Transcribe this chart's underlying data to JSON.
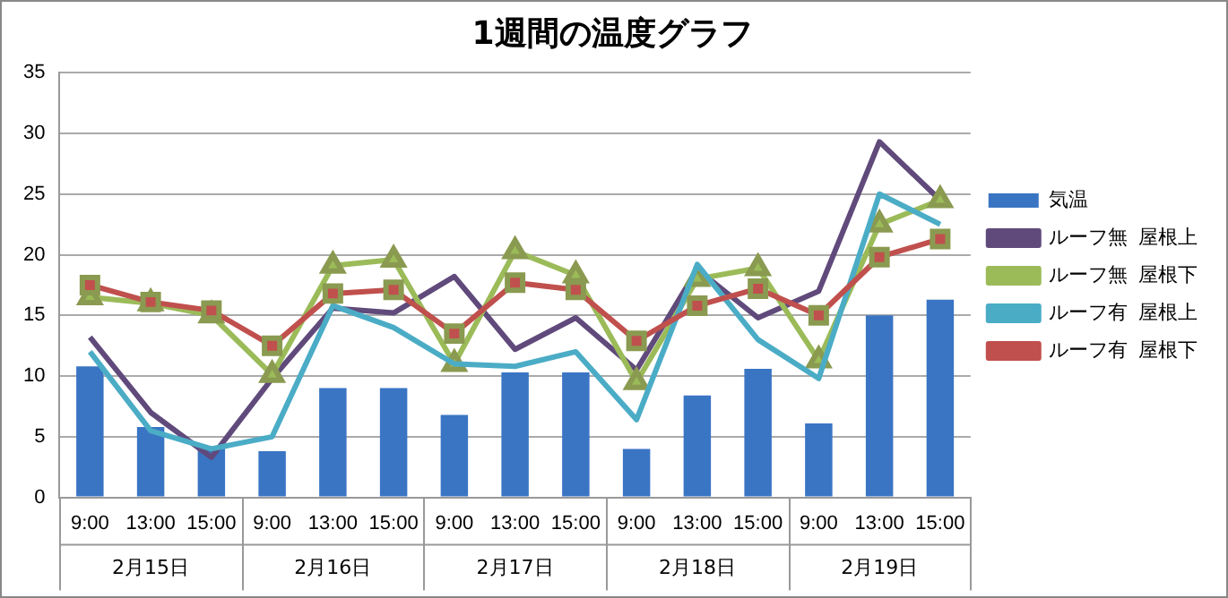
{
  "chart_data": {
    "type": "bar",
    "title": "1週間の温度グラフ",
    "categories": [
      "9:00",
      "13:00",
      "15:00",
      "9:00",
      "13:00",
      "15:00",
      "9:00",
      "13:00",
      "15:00",
      "9:00",
      "13:00",
      "15:00",
      "9:00",
      "13:00",
      "15:00"
    ],
    "annotations": [
      "2月15日",
      "2月16日",
      "2月17日",
      "2月18日",
      "2月19日"
    ],
    "series": [
      {
        "name": "気温",
        "color": "#3a75c4",
        "values": [
          10.8,
          5.8,
          4.2,
          3.8,
          9.0,
          9.0,
          6.8,
          10.3,
          10.3,
          4.0,
          8.4,
          10.6,
          6.1,
          15.0,
          16.3
        ]
      },
      {
        "name": "ルーフ無  屋根上",
        "type": "line",
        "color": "#604a7b",
        "marker": "none",
        "values": [
          13.2,
          7.0,
          3.3,
          9.8,
          15.6,
          15.2,
          18.2,
          12.2,
          14.8,
          10.5,
          18.8,
          14.8,
          17.0,
          29.3,
          24.5
        ]
      },
      {
        "name": "ルーフ無  屋根下",
        "type": "line",
        "color": "#9bbb59",
        "marker": "triangle",
        "values": [
          16.5,
          16.0,
          15.0,
          10.1,
          19.1,
          19.6,
          11.0,
          20.3,
          18.3,
          9.5,
          18.0,
          18.9,
          11.3,
          22.5,
          24.5
        ]
      },
      {
        "name": "ルーフ有  屋根上",
        "type": "line",
        "color": "#4bacc6",
        "marker": "none",
        "values": [
          12.0,
          5.5,
          4.0,
          5.0,
          15.8,
          14.0,
          11.0,
          10.8,
          12.0,
          6.4,
          19.2,
          13.0,
          9.8,
          25.0,
          22.5
        ]
      },
      {
        "name": "ルーフ有  屋根下",
        "type": "line",
        "color": "#c0504d",
        "marker": "square",
        "values": [
          17.5,
          16.1,
          15.4,
          12.5,
          16.8,
          17.1,
          13.5,
          17.7,
          17.1,
          12.9,
          15.8,
          17.2,
          15.0,
          19.8,
          21.3
        ]
      }
    ],
    "ylim": [
      0,
      35
    ],
    "yticks": [
      0,
      5,
      10,
      15,
      20,
      25,
      30,
      35
    ],
    "grid": "y",
    "legend": "right"
  }
}
